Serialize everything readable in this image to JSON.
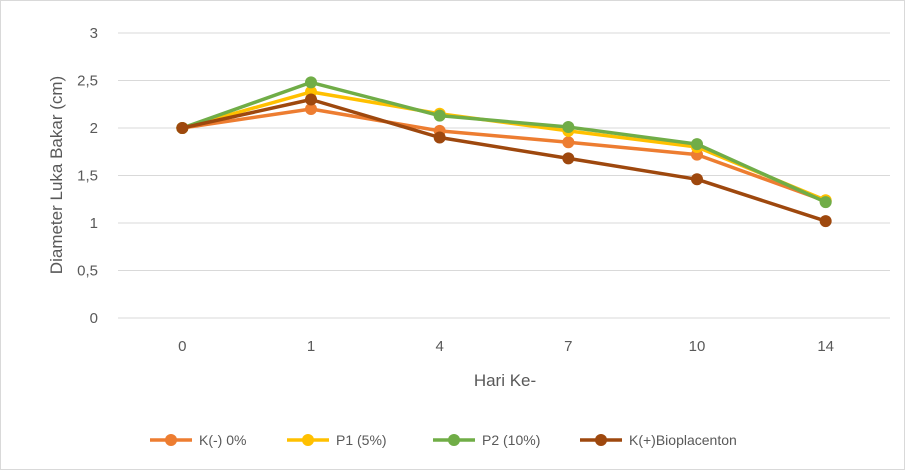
{
  "chart_data": {
    "type": "line",
    "title": "",
    "xlabel": "Hari Ke-",
    "ylabel": "Diameter Luka Bakar (cm)",
    "categories": [
      "0",
      "1",
      "4",
      "7",
      "10",
      "14"
    ],
    "ylim": [
      0,
      3
    ],
    "yticks": [
      "0",
      "0,5",
      "1",
      "1,5",
      "2",
      "2,5",
      "3"
    ],
    "grid": true,
    "legend_position": "bottom",
    "series": [
      {
        "name": "K(-) 0%",
        "color": "#ED7D31",
        "values": [
          2.0,
          2.2,
          1.97,
          1.85,
          1.72,
          1.23
        ]
      },
      {
        "name": "P1 (5%)",
        "color": "#FFC000",
        "values": [
          2.0,
          2.38,
          2.15,
          1.97,
          1.8,
          1.24
        ]
      },
      {
        "name": "P2 (10%)",
        "color": "#70AD47",
        "values": [
          2.0,
          2.48,
          2.13,
          2.01,
          1.83,
          1.22
        ]
      },
      {
        "name": "K(+)Bioplacenton",
        "color": "#9E480E",
        "values": [
          2.0,
          2.3,
          1.9,
          1.68,
          1.46,
          1.02
        ]
      }
    ]
  }
}
